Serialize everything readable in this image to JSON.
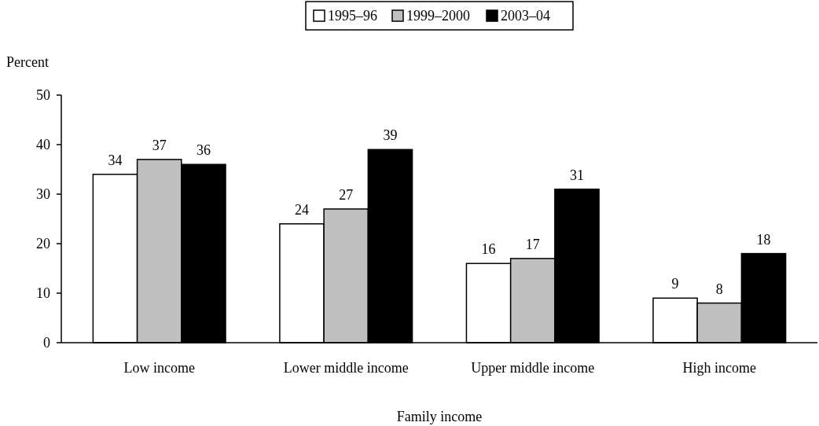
{
  "chart_data": {
    "type": "bar",
    "ylabel": "Percent",
    "xlabel": "Family income",
    "categories": [
      "Low income",
      "Lower middle income",
      "Upper middle income",
      "High income"
    ],
    "series": [
      {
        "name": "1995–96",
        "color": "#ffffff",
        "values": [
          34,
          24,
          16,
          9
        ]
      },
      {
        "name": "1999–2000",
        "color": "#c0c0c0",
        "values": [
          37,
          27,
          17,
          8
        ]
      },
      {
        "name": "2003–04",
        "color": "#000000",
        "values": [
          36,
          39,
          31,
          18
        ]
      }
    ],
    "ylim": [
      0,
      50
    ],
    "yticks": [
      0,
      10,
      20,
      30,
      40,
      50
    ],
    "data_labels": true,
    "legend": "top",
    "grid": false
  }
}
